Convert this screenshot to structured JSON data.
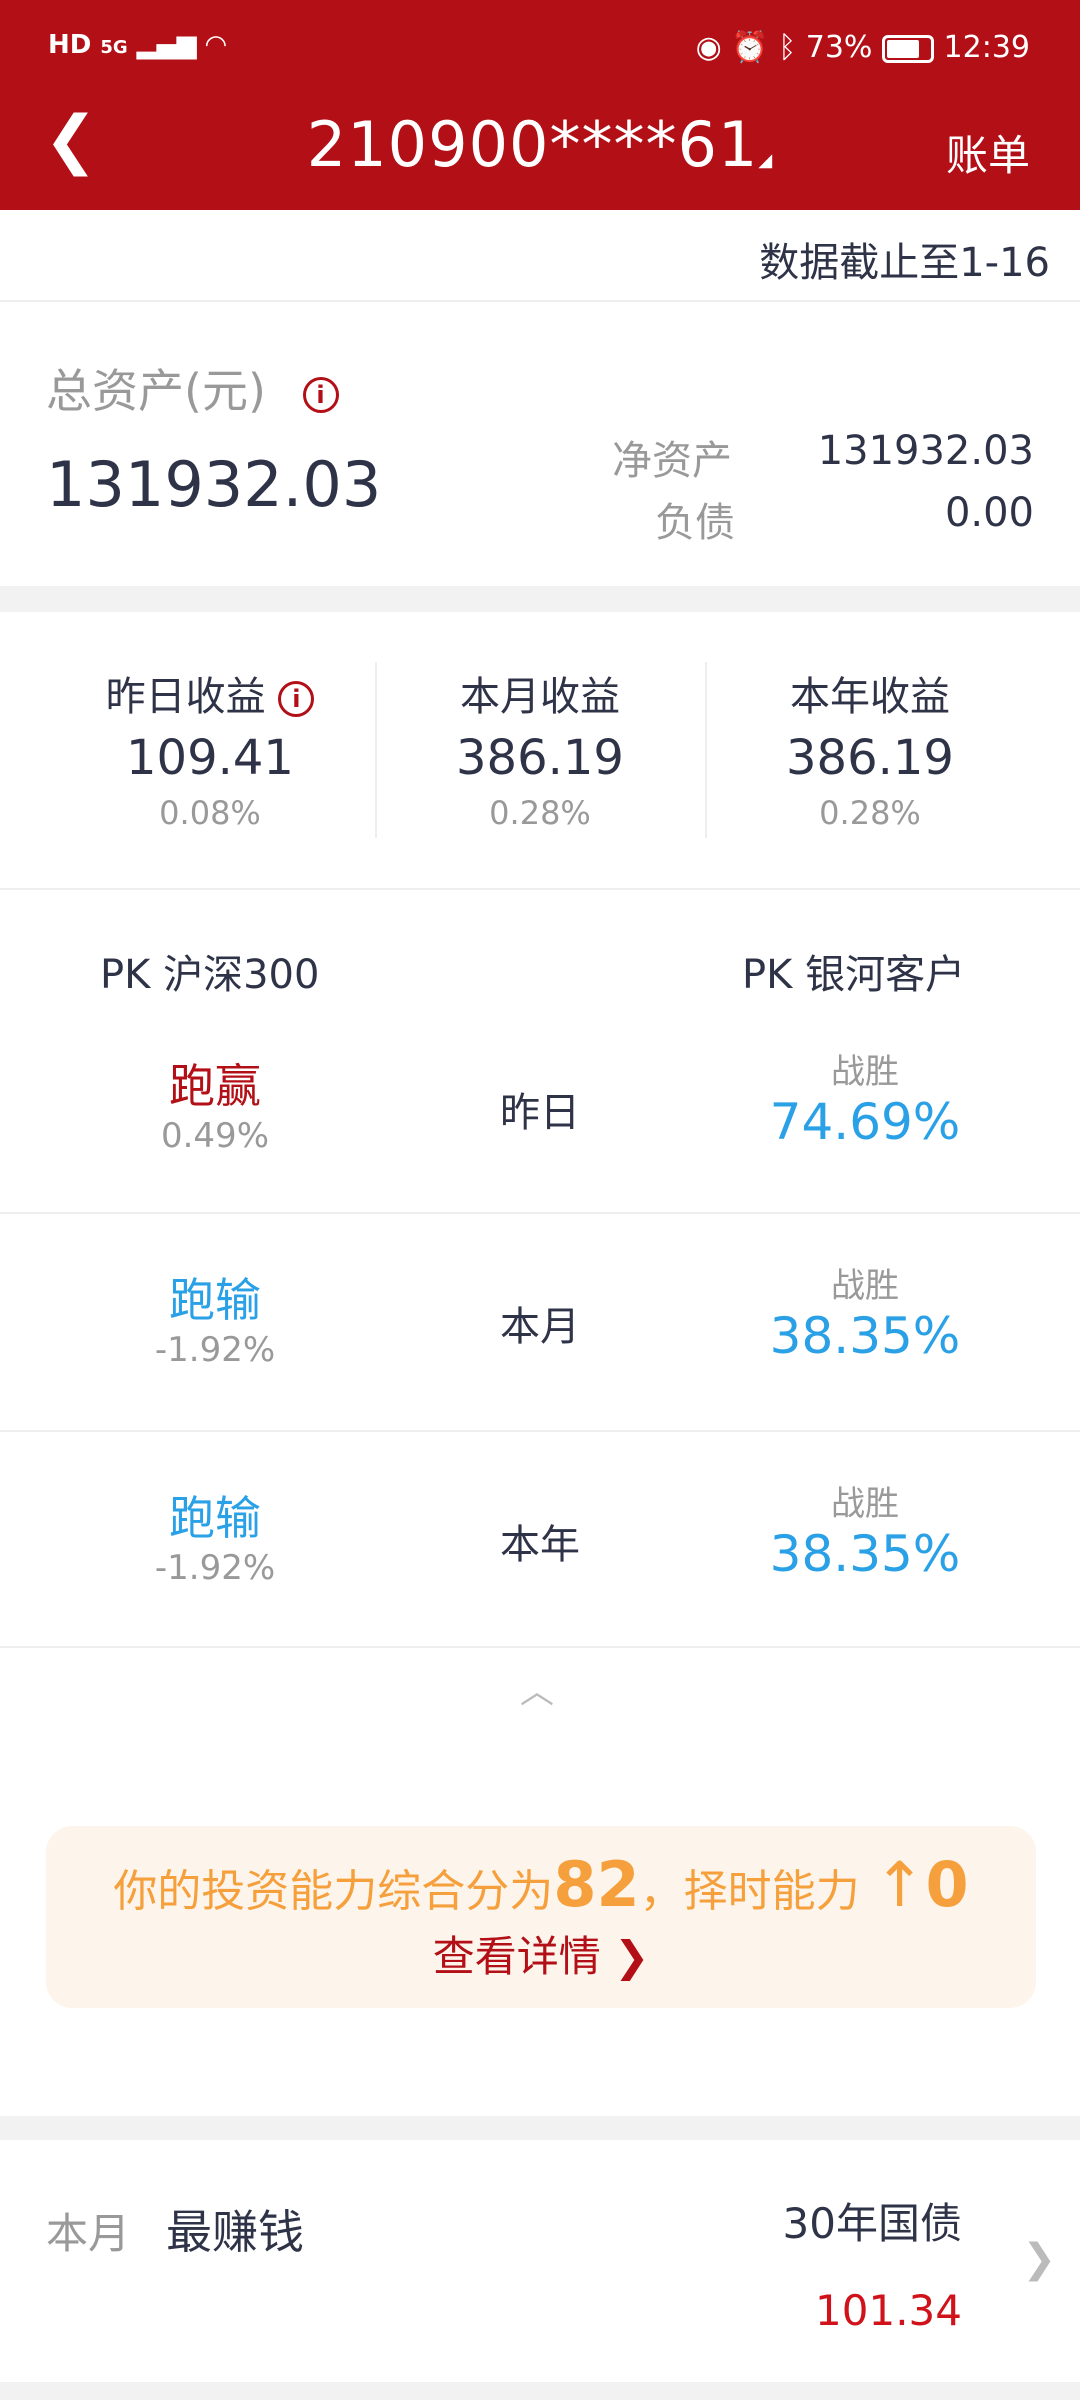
{
  "status_bar": {
    "left": "HD 5G",
    "battery": "73%",
    "time": "12:39"
  },
  "header": {
    "title": "210900****61",
    "bill_label": "账单"
  },
  "data_date": "数据截止至1-16",
  "assets": {
    "total_label": "总资产(元)",
    "total_value": "131932.03",
    "net_label": "净资产",
    "net_value": "131932.03",
    "debt_label": "负债",
    "debt_value": "0.00"
  },
  "earnings": [
    {
      "label": "昨日收益",
      "value": "109.41",
      "pct": "0.08%"
    },
    {
      "label": "本月收益",
      "value": "386.19",
      "pct": "0.28%"
    },
    {
      "label": "本年收益",
      "value": "386.19",
      "pct": "0.28%"
    }
  ],
  "pk": {
    "left_header": "PK 沪深300",
    "right_header": "PK 银河客户",
    "rows": [
      {
        "result": "跑赢",
        "result_color": "#b30f17",
        "diff": "0.49%",
        "period": "昨日",
        "win_label": "战胜",
        "win_pct": "74.69%"
      },
      {
        "result": "跑输",
        "result_color": "#2aa0e6",
        "diff": "-1.92%",
        "period": "本月",
        "win_label": "战胜",
        "win_pct": "38.35%"
      },
      {
        "result": "跑输",
        "result_color": "#2aa0e6",
        "diff": "-1.92%",
        "period": "本年",
        "win_label": "战胜",
        "win_pct": "38.35%"
      }
    ]
  },
  "score": {
    "prefix": "你的投资能力综合分为",
    "score": "82",
    "mid": "，择时能力",
    "arrow": "↑",
    "timing": "0",
    "detail": "查看详情"
  },
  "best": {
    "period": "本月",
    "label": "最赚钱",
    "name": "30年国债",
    "value": "101.34"
  },
  "colors": {
    "brand": "#b30f17",
    "win": "#2aa0e6",
    "score": "#f5a03c"
  }
}
